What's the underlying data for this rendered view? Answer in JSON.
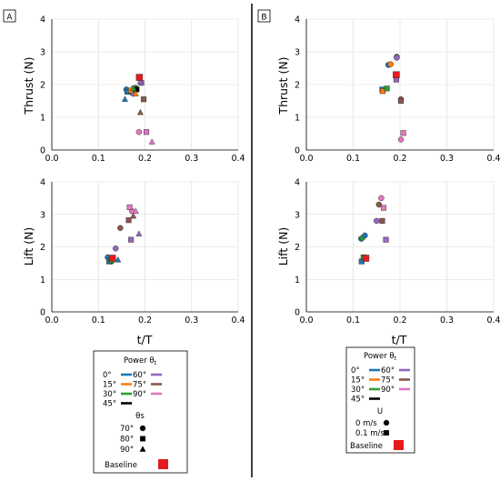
{
  "chart_data": [
    {
      "panel_label": "A",
      "type": "scatter",
      "ylabel": "Thrust (N)",
      "xlim": [
        0.0,
        0.4
      ],
      "ylim": [
        0,
        4
      ],
      "xticks": [
        "0.0",
        "0.1",
        "0.2",
        "0.3",
        "0.4"
      ],
      "yticks": [
        "0",
        "1",
        "2",
        "3",
        "4"
      ],
      "grid": true,
      "points": [
        {
          "x": 0.16,
          "y": 1.85,
          "color": "#1f77b4",
          "marker": "circle"
        },
        {
          "x": 0.165,
          "y": 1.8,
          "color": "#ff7f0e",
          "marker": "circle"
        },
        {
          "x": 0.172,
          "y": 1.75,
          "color": "#2ca02c",
          "marker": "circle"
        },
        {
          "x": 0.175,
          "y": 1.72,
          "color": "#9467bd",
          "marker": "circle"
        },
        {
          "x": 0.18,
          "y": 1.9,
          "color": "#8c564b",
          "marker": "circle"
        },
        {
          "x": 0.187,
          "y": 0.55,
          "color": "#e377c2",
          "marker": "circle"
        },
        {
          "x": 0.162,
          "y": 1.78,
          "color": "#1f77b4",
          "marker": "square"
        },
        {
          "x": 0.17,
          "y": 1.82,
          "color": "#ff7f0e",
          "marker": "square"
        },
        {
          "x": 0.177,
          "y": 1.88,
          "color": "#2ca02c",
          "marker": "square"
        },
        {
          "x": 0.182,
          "y": 1.85,
          "color": "#000000",
          "marker": "square"
        },
        {
          "x": 0.192,
          "y": 2.05,
          "color": "#9467bd",
          "marker": "square"
        },
        {
          "x": 0.197,
          "y": 1.55,
          "color": "#8c564b",
          "marker": "square"
        },
        {
          "x": 0.203,
          "y": 0.55,
          "color": "#e377c2",
          "marker": "square"
        },
        {
          "x": 0.157,
          "y": 1.55,
          "color": "#1f77b4",
          "marker": "triangle"
        },
        {
          "x": 0.175,
          "y": 1.88,
          "color": "#2ca02c",
          "marker": "triangle"
        },
        {
          "x": 0.18,
          "y": 1.72,
          "color": "#ff7f0e",
          "marker": "triangle"
        },
        {
          "x": 0.19,
          "y": 1.15,
          "color": "#8c564b",
          "marker": "triangle"
        },
        {
          "x": 0.19,
          "y": 2.1,
          "color": "#9467bd",
          "marker": "triangle"
        },
        {
          "x": 0.215,
          "y": 0.25,
          "color": "#e377c2",
          "marker": "triangle"
        },
        {
          "x": 0.188,
          "y": 2.22,
          "color": "#e41a1c",
          "marker": "baseline"
        }
      ]
    },
    {
      "panel_label": "",
      "type": "scatter",
      "xlabel": "t/T",
      "ylabel": "Lift (N)",
      "xlim": [
        0.0,
        0.4
      ],
      "ylim": [
        0,
        4
      ],
      "xticks": [
        "0.0",
        "0.1",
        "0.2",
        "0.3",
        "0.4"
      ],
      "yticks": [
        "0",
        "1",
        "2",
        "3",
        "4"
      ],
      "grid": true,
      "points": [
        {
          "x": 0.12,
          "y": 1.68,
          "color": "#1f77b4",
          "marker": "circle"
        },
        {
          "x": 0.125,
          "y": 1.6,
          "color": "#ff7f0e",
          "marker": "circle"
        },
        {
          "x": 0.128,
          "y": 1.55,
          "color": "#2ca02c",
          "marker": "circle"
        },
        {
          "x": 0.137,
          "y": 1.95,
          "color": "#9467bd",
          "marker": "circle"
        },
        {
          "x": 0.147,
          "y": 2.58,
          "color": "#8c564b",
          "marker": "circle"
        },
        {
          "x": 0.172,
          "y": 3.1,
          "color": "#e377c2",
          "marker": "circle"
        },
        {
          "x": 0.123,
          "y": 1.55,
          "color": "#1f77b4",
          "marker": "square"
        },
        {
          "x": 0.127,
          "y": 1.58,
          "color": "#2ca02c",
          "marker": "square"
        },
        {
          "x": 0.17,
          "y": 2.22,
          "color": "#9467bd",
          "marker": "square"
        },
        {
          "x": 0.165,
          "y": 2.82,
          "color": "#8c564b",
          "marker": "square"
        },
        {
          "x": 0.167,
          "y": 3.22,
          "color": "#e377c2",
          "marker": "square"
        },
        {
          "x": 0.142,
          "y": 1.6,
          "color": "#1f77b4",
          "marker": "triangle"
        },
        {
          "x": 0.175,
          "y": 2.95,
          "color": "#8c564b",
          "marker": "triangle"
        },
        {
          "x": 0.18,
          "y": 3.1,
          "color": "#e377c2",
          "marker": "triangle"
        },
        {
          "x": 0.187,
          "y": 2.4,
          "color": "#9467bd",
          "marker": "triangle"
        },
        {
          "x": 0.13,
          "y": 1.65,
          "color": "#e41a1c",
          "marker": "baseline"
        }
      ]
    },
    {
      "panel_label": "B",
      "type": "scatter",
      "ylabel": "Thrust (N)",
      "xlim": [
        0.0,
        0.4
      ],
      "ylim": [
        0,
        4
      ],
      "xticks": [
        "0.0",
        "0.1",
        "0.2",
        "0.3",
        "0.4"
      ],
      "yticks": [
        "0",
        "1",
        "2",
        "3",
        "4"
      ],
      "grid": true,
      "points": [
        {
          "x": 0.175,
          "y": 2.6,
          "color": "#1f77b4",
          "marker": "circle"
        },
        {
          "x": 0.18,
          "y": 2.62,
          "color": "#ff7f0e",
          "marker": "circle"
        },
        {
          "x": 0.193,
          "y": 2.85,
          "color": "#2ca02c",
          "marker": "circle"
        },
        {
          "x": 0.193,
          "y": 2.82,
          "color": "#9467bd",
          "marker": "circle"
        },
        {
          "x": 0.192,
          "y": 2.25,
          "color": "#8c564b",
          "marker": "circle"
        },
        {
          "x": 0.202,
          "y": 1.55,
          "color": "#8c564b",
          "marker": "circle"
        },
        {
          "x": 0.202,
          "y": 0.32,
          "color": "#e377c2",
          "marker": "circle"
        },
        {
          "x": 0.162,
          "y": 1.85,
          "color": "#1f77b4",
          "marker": "square"
        },
        {
          "x": 0.163,
          "y": 1.8,
          "color": "#ff7f0e",
          "marker": "square"
        },
        {
          "x": 0.172,
          "y": 1.88,
          "color": "#2ca02c",
          "marker": "square"
        },
        {
          "x": 0.192,
          "y": 2.15,
          "color": "#9467bd",
          "marker": "square"
        },
        {
          "x": 0.202,
          "y": 1.5,
          "color": "#8c564b",
          "marker": "square"
        },
        {
          "x": 0.207,
          "y": 0.52,
          "color": "#e377c2",
          "marker": "square"
        },
        {
          "x": 0.192,
          "y": 2.3,
          "color": "#e41a1c",
          "marker": "baseline"
        }
      ]
    },
    {
      "panel_label": "",
      "type": "scatter",
      "xlabel": "t/T",
      "ylabel": "Lift (N)",
      "xlim": [
        0.0,
        0.4
      ],
      "ylim": [
        0,
        4
      ],
      "xticks": [
        "0.0",
        "0.1",
        "0.2",
        "0.3",
        "0.4"
      ],
      "yticks": [
        "0",
        "1",
        "2",
        "3",
        "4"
      ],
      "grid": true,
      "points": [
        {
          "x": 0.117,
          "y": 2.25,
          "color": "#1f77b4",
          "marker": "circle"
        },
        {
          "x": 0.12,
          "y": 2.28,
          "color": "#2ca02c",
          "marker": "circle"
        },
        {
          "x": 0.125,
          "y": 2.35,
          "color": "#1f77b4",
          "marker": "circle"
        },
        {
          "x": 0.15,
          "y": 2.8,
          "color": "#9467bd",
          "marker": "circle"
        },
        {
          "x": 0.155,
          "y": 3.3,
          "color": "#8c564b",
          "marker": "circle"
        },
        {
          "x": 0.16,
          "y": 3.5,
          "color": "#e377c2",
          "marker": "circle"
        },
        {
          "x": 0.118,
          "y": 1.55,
          "color": "#1f77b4",
          "marker": "square"
        },
        {
          "x": 0.122,
          "y": 1.68,
          "color": "#2ca02c",
          "marker": "square"
        },
        {
          "x": 0.162,
          "y": 2.8,
          "color": "#8c564b",
          "marker": "square"
        },
        {
          "x": 0.165,
          "y": 3.2,
          "color": "#e377c2",
          "marker": "square"
        },
        {
          "x": 0.17,
          "y": 2.22,
          "color": "#9467bd",
          "marker": "square"
        },
        {
          "x": 0.127,
          "y": 1.65,
          "color": "#e41a1c",
          "marker": "baseline"
        }
      ]
    }
  ],
  "legend_a": {
    "power_title": "Power θ",
    "power_sub": "t",
    "power_items": [
      {
        "label": "0°",
        "color": "#1f77b4"
      },
      {
        "label": "60°",
        "color": "#9467bd"
      },
      {
        "label": "15°",
        "color": "#ff7f0e"
      },
      {
        "label": "75°",
        "color": "#8c564b"
      },
      {
        "label": "30°",
        "color": "#2ca02c"
      },
      {
        "label": "90°",
        "color": "#e377c2"
      },
      {
        "label": "45°",
        "color": "#000000"
      }
    ],
    "theta_title": "θs",
    "theta_items": [
      {
        "label": "70°",
        "marker": "circle"
      },
      {
        "label": "80°",
        "marker": "square"
      },
      {
        "label": "90°",
        "marker": "triangle"
      }
    ],
    "baseline_label": "Baseline",
    "baseline_color": "#e41a1c"
  },
  "legend_b": {
    "power_title": "Power θ",
    "power_sub": "t",
    "power_items": [
      {
        "label": "0°",
        "color": "#1f77b4"
      },
      {
        "label": "60°",
        "color": "#9467bd"
      },
      {
        "label": "15°",
        "color": "#ff7f0e"
      },
      {
        "label": "75°",
        "color": "#8c564b"
      },
      {
        "label": "30°",
        "color": "#2ca02c"
      },
      {
        "label": "90°",
        "color": "#e377c2"
      },
      {
        "label": "45°",
        "color": "#000000"
      }
    ],
    "u_title": "U",
    "u_items": [
      {
        "label": "0 m/s",
        "marker": "circle"
      },
      {
        "label": "0.1 m/s",
        "marker": "square"
      }
    ],
    "baseline_label": "Baseline",
    "baseline_color": "#e41a1c"
  }
}
